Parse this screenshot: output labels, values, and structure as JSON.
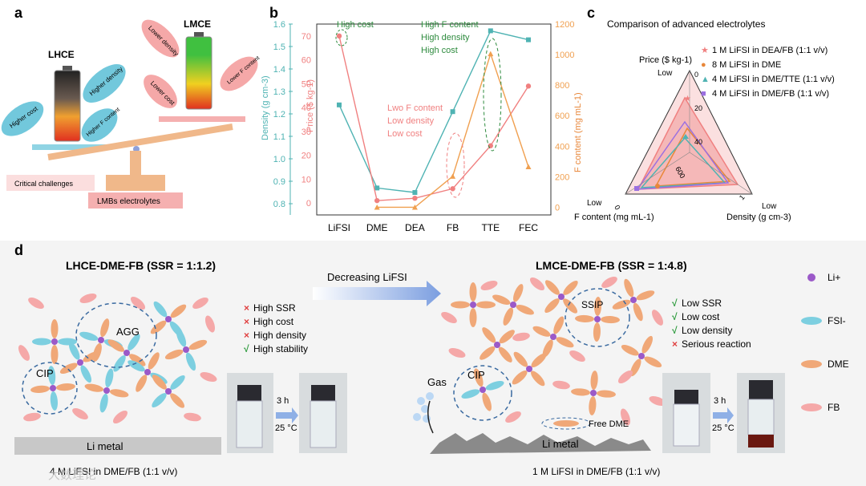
{
  "panel_a": {
    "letter": "a",
    "lhce": "LHCE",
    "lmce": "LMCE",
    "higher_cost": "Higher cost",
    "higher_density": "Higher density",
    "higher_f": "Higher F content",
    "lower_density": "Lower density",
    "lower_cost": "Lower cost",
    "lower_f": "Lower F content",
    "critical": "Critical challenges",
    "lmb": "LMBs electrolytes"
  },
  "panel_b": {
    "letter": "b",
    "ann_high_cost": "High cost",
    "ann_high_f": [
      "High F content",
      "High density",
      "High cost"
    ],
    "ann_low": [
      "Lwo F content",
      "Low density",
      "Low cost"
    ],
    "colors": {
      "density": "#4fb3b3",
      "price": "#f08080",
      "f_content": "#f0a050",
      "green": "#2e8b3e"
    }
  },
  "chart_data": {
    "type": "line",
    "categories": [
      "LiFSI",
      "DME",
      "DEA",
      "FB",
      "TTE",
      "FEC"
    ],
    "series": [
      {
        "name": "Density",
        "axis": "left",
        "unit": "g cm-3",
        "values": [
          1.24,
          0.87,
          0.85,
          1.21,
          1.57,
          1.53
        ]
      },
      {
        "name": "Price",
        "axis": "middle",
        "unit": "$ kg-1",
        "values": [
          70,
          1,
          2,
          6,
          24,
          49
        ]
      },
      {
        "name": "F content",
        "axis": "right",
        "unit": "mg mL-1",
        "values": [
          null,
          0,
          0,
          203,
          1005,
          265
        ]
      }
    ],
    "ylabel_left": "Density (g cm-3)",
    "ylabel_middle": "Price ($ kg-1)",
    "ylabel_right": "F content (mg mL-1)",
    "ylim_left": [
      0.75,
      1.6
    ],
    "ylim_middle": [
      -5,
      75
    ],
    "ylim_right": [
      -50,
      1200
    ],
    "yticks_left": [
      "0.8",
      "0.9",
      "1.0",
      "1.1",
      "1.2",
      "1.3",
      "1.4",
      "1.5",
      "1.6"
    ],
    "yticks_middle": [
      "0",
      "10",
      "20",
      "30",
      "40",
      "50",
      "60",
      "70"
    ],
    "yticks_right": [
      "0",
      "200",
      "400",
      "600",
      "800",
      "1000",
      "1200"
    ]
  },
  "panel_c": {
    "letter": "c",
    "title": "Comparison of advanced electrolytes",
    "axis_price": "Price ($ kg-1)",
    "axis_f": "F content (mg mL-1)",
    "axis_density": "Density (g cm-3)",
    "low_top": "Low",
    "low_left": "Low",
    "low_right": "Low",
    "ticks_price": [
      "0",
      "20",
      "40"
    ],
    "ticks_f": [
      "0",
      "600"
    ],
    "ticks_density": [
      "1"
    ],
    "legend": [
      {
        "label": "1 M LiFSI in DEA/FB (1:1 v/v)",
        "color": "#f08080",
        "marker": "★"
      },
      {
        "label": "8 M LiFSI in DME",
        "color": "#e8873a",
        "marker": "●"
      },
      {
        "label": "4 M LiFSI in DME/TTE (1:1 v/v)",
        "color": "#4fb3b3",
        "marker": "▲"
      },
      {
        "label": "4 M LiFSI in DME/FB (1:1 v/v)",
        "color": "#9b6fe0",
        "marker": "■"
      }
    ]
  },
  "panel_d": {
    "letter": "d",
    "left_title": "LHCE-DME-FB (SSR = 1:1.2)",
    "right_title": "LMCE-DME-FB (SSR = 1:4.8)",
    "arrow_label": "Decreasing LiFSI",
    "agg": "AGG",
    "cip": "CIP",
    "ssip": "SSIP",
    "cip_right": "CIP",
    "gas": "Gas",
    "free_dme": "Free DME",
    "li_metal_left": "Li metal",
    "li_metal_right": "Li metal",
    "left_props": [
      {
        "mark": "×",
        "text": "High SSR",
        "color": "#e04040"
      },
      {
        "mark": "×",
        "text": "High cost",
        "color": "#e04040"
      },
      {
        "mark": "×",
        "text": "High density",
        "color": "#e04040"
      },
      {
        "mark": "√",
        "text": "High stability",
        "color": "#2e9b3e"
      }
    ],
    "right_props": [
      {
        "mark": "√",
        "text": "Low SSR",
        "color": "#2e9b3e"
      },
      {
        "mark": "√",
        "text": "Low cost",
        "color": "#2e9b3e"
      },
      {
        "mark": "√",
        "text": "Low density",
        "color": "#2e9b3e"
      },
      {
        "mark": "×",
        "text": "Serious reaction",
        "color": "#e04040"
      }
    ],
    "time": "3 h",
    "temp": "25 °C",
    "left_caption": "4 M LiFSI in DME/FB (1:1 v/v)",
    "right_caption": "1 M LiFSI in DME/FB (1:1 v/v)",
    "legend": [
      {
        "label": "Li+",
        "color": "#9b59c8"
      },
      {
        "label": "FSI-",
        "color": "#7dcfe0"
      },
      {
        "label": "DME",
        "color": "#f0a878"
      },
      {
        "label": "FB",
        "color": "#f5a8a8"
      }
    ],
    "watermark": "大数理论"
  }
}
